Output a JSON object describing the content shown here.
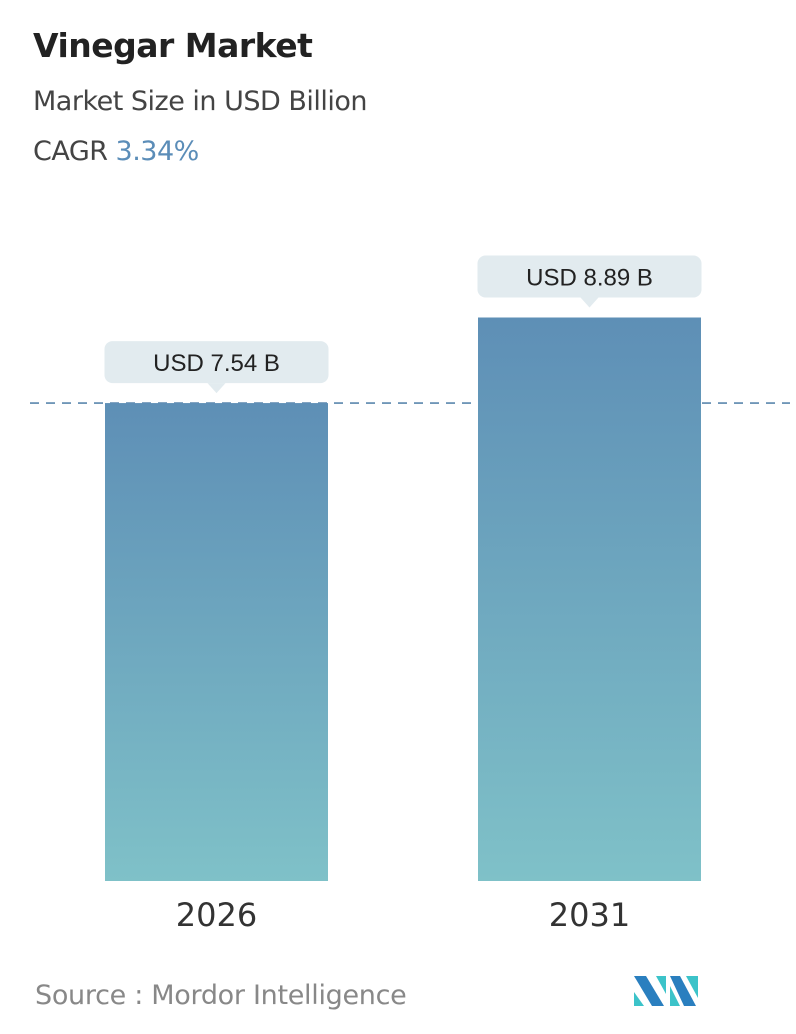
{
  "header": {
    "title": "Vinegar Market",
    "subtitle": "Market Size in USD Billion",
    "cagr_label": "CAGR",
    "cagr_value": "3.34%"
  },
  "chart_data": {
    "type": "bar",
    "categories": [
      "2026",
      "2031"
    ],
    "values": [
      7.54,
      8.89
    ],
    "data_labels": [
      "USD 7.54 B",
      "USD 8.89 B"
    ],
    "ylim": [
      0,
      8.89
    ],
    "reference_line": 7.54,
    "grid": false,
    "colors": {
      "bar_top": "#5e8fb6",
      "bar_bottom": "#7fc1c8",
      "label_bg": "#e2ebef",
      "dash": "#5b87ad"
    }
  },
  "footer": {
    "source": "Source :  Mordor Intelligence",
    "logo": "Mordor Intelligence logo"
  }
}
